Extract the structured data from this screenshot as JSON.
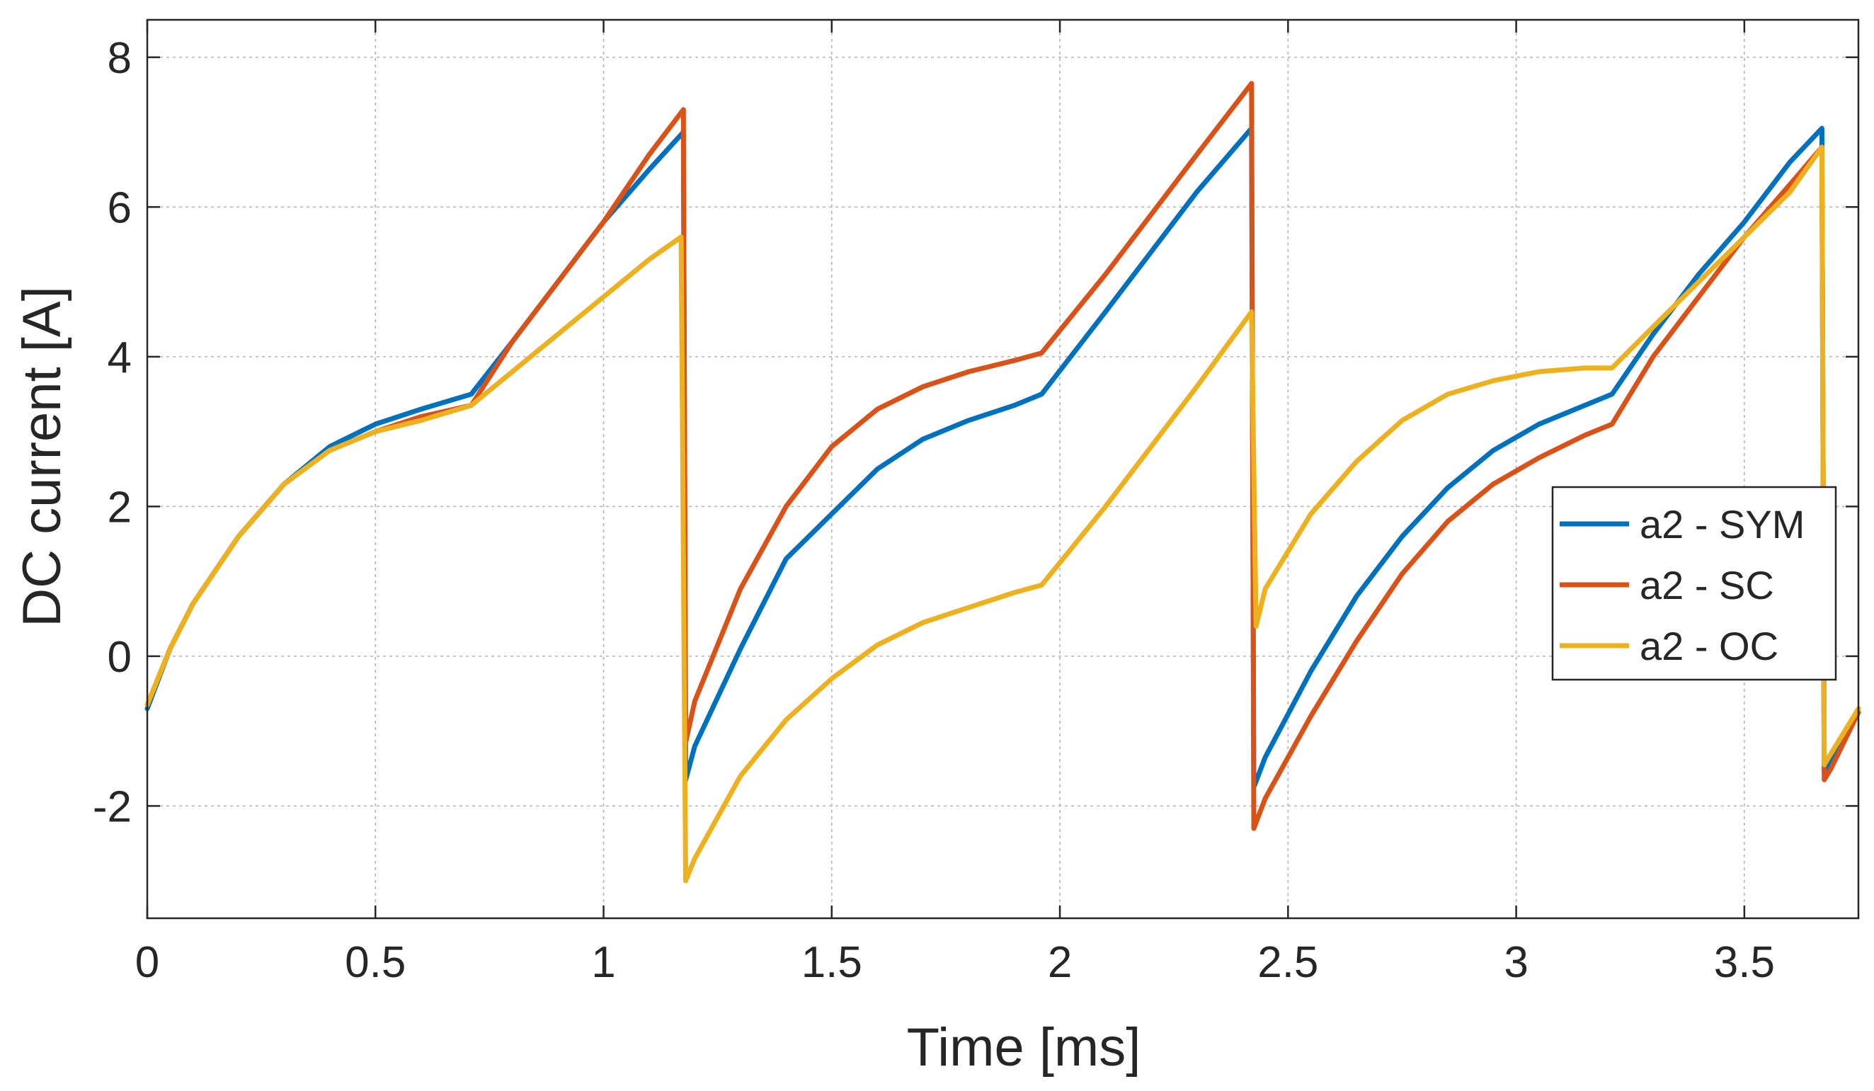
{
  "chart_data": {
    "type": "line",
    "title": "",
    "xlabel": "Time  [ms]",
    "ylabel": "DC current [A]",
    "xlim": [
      0,
      3.75
    ],
    "ylim": [
      -3.5,
      8.5
    ],
    "xticks": [
      0,
      0.5,
      1,
      1.5,
      2,
      2.5,
      3,
      3.5
    ],
    "xtick_labels": [
      "0",
      "0.5",
      "1",
      "1.5",
      "2",
      "2.5",
      "3",
      "3.5"
    ],
    "yticks": [
      -2,
      0,
      2,
      4,
      6,
      8
    ],
    "ytick_labels": [
      "-2",
      "0",
      "2",
      "4",
      "6",
      "8"
    ],
    "grid": true,
    "legend_location": "right",
    "series": [
      {
        "name": "a2 - SYM",
        "color": "#0072BD",
        "x": [
          0,
          0.05,
          0.1,
          0.2,
          0.3,
          0.4,
          0.5,
          0.6,
          0.71,
          0.8,
          0.9,
          1.0,
          1.1,
          1.175,
          1.18,
          1.2,
          1.3,
          1.4,
          1.5,
          1.6,
          1.7,
          1.8,
          1.9,
          1.96,
          2.1,
          2.2,
          2.3,
          2.42,
          2.425,
          2.45,
          2.55,
          2.65,
          2.75,
          2.85,
          2.95,
          3.05,
          3.15,
          3.21,
          3.3,
          3.4,
          3.5,
          3.6,
          3.67,
          3.675,
          3.69,
          3.75
        ],
        "values": [
          -0.7,
          0.1,
          0.7,
          1.6,
          2.3,
          2.8,
          3.1,
          3.3,
          3.5,
          4.2,
          5.0,
          5.8,
          6.5,
          7.0,
          -1.65,
          -1.2,
          0.1,
          1.3,
          1.9,
          2.5,
          2.9,
          3.15,
          3.35,
          3.5,
          4.6,
          5.4,
          6.2,
          7.05,
          -1.75,
          -1.35,
          -0.2,
          0.8,
          1.6,
          2.25,
          2.75,
          3.1,
          3.35,
          3.5,
          4.3,
          5.1,
          5.8,
          6.6,
          7.05,
          -1.55,
          -1.4,
          -0.75
        ]
      },
      {
        "name": "a2 - SC",
        "color": "#D95319",
        "x": [
          0,
          0.05,
          0.1,
          0.2,
          0.3,
          0.4,
          0.5,
          0.6,
          0.71,
          0.8,
          0.9,
          1.0,
          1.1,
          1.175,
          1.18,
          1.2,
          1.3,
          1.4,
          1.5,
          1.6,
          1.7,
          1.8,
          1.9,
          1.96,
          2.1,
          2.2,
          2.3,
          2.42,
          2.425,
          2.45,
          2.55,
          2.65,
          2.75,
          2.85,
          2.95,
          3.05,
          3.15,
          3.21,
          3.3,
          3.4,
          3.5,
          3.6,
          3.67,
          3.675,
          3.69,
          3.75
        ],
        "values": [
          -0.65,
          0.1,
          0.7,
          1.6,
          2.3,
          2.75,
          3.0,
          3.2,
          3.35,
          4.2,
          5.0,
          5.8,
          6.7,
          7.3,
          -1.15,
          -0.6,
          0.9,
          2.0,
          2.8,
          3.3,
          3.6,
          3.8,
          3.95,
          4.05,
          5.1,
          5.9,
          6.7,
          7.65,
          -2.3,
          -1.9,
          -0.8,
          0.2,
          1.1,
          1.8,
          2.3,
          2.65,
          2.95,
          3.1,
          4.0,
          4.8,
          5.6,
          6.3,
          6.8,
          -1.65,
          -1.5,
          -0.75
        ]
      },
      {
        "name": "a2 - OC",
        "color": "#EDB120",
        "x": [
          0,
          0.05,
          0.1,
          0.2,
          0.3,
          0.4,
          0.5,
          0.6,
          0.71,
          0.8,
          0.9,
          1.0,
          1.1,
          1.17,
          1.18,
          1.2,
          1.3,
          1.4,
          1.5,
          1.6,
          1.7,
          1.8,
          1.9,
          1.96,
          2.1,
          2.2,
          2.3,
          2.42,
          2.43,
          2.45,
          2.55,
          2.65,
          2.75,
          2.85,
          2.95,
          3.05,
          3.15,
          3.21,
          3.3,
          3.4,
          3.5,
          3.6,
          3.67,
          3.675,
          3.69,
          3.75
        ],
        "values": [
          -0.65,
          0.1,
          0.7,
          1.6,
          2.3,
          2.75,
          3.0,
          3.15,
          3.35,
          3.8,
          4.3,
          4.8,
          5.3,
          5.6,
          -3.0,
          -2.7,
          -1.6,
          -0.85,
          -0.3,
          0.15,
          0.45,
          0.65,
          0.85,
          0.95,
          2.0,
          2.8,
          3.6,
          4.6,
          0.4,
          0.9,
          1.9,
          2.6,
          3.15,
          3.5,
          3.68,
          3.8,
          3.85,
          3.85,
          4.4,
          5.0,
          5.6,
          6.2,
          6.8,
          -1.45,
          -1.3,
          -0.7
        ]
      }
    ]
  }
}
